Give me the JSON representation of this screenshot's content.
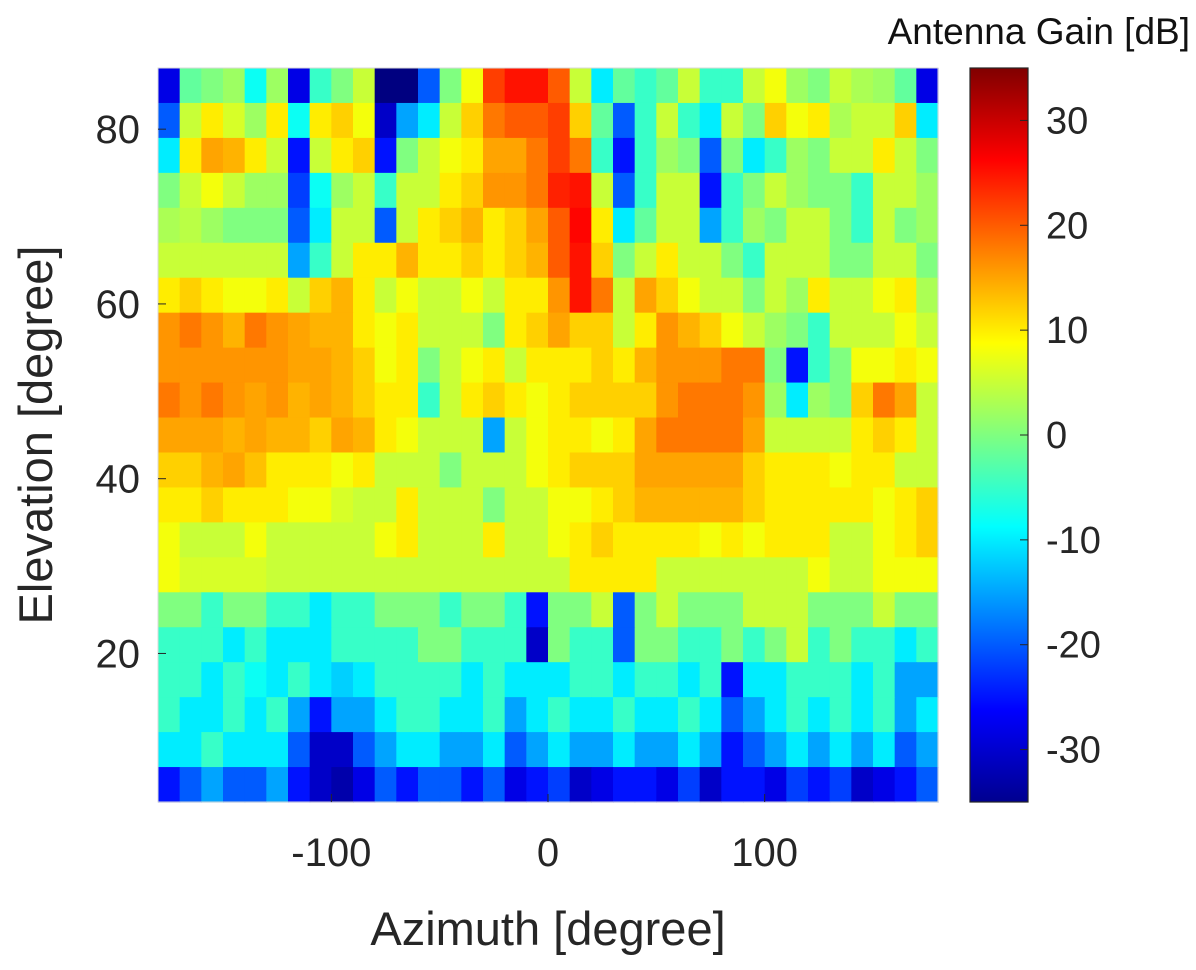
{
  "chart_data": {
    "type": "heatmap",
    "title": "",
    "xlabel": "Azimuth [degree]",
    "ylabel": "Elevation [degree]",
    "xlim": [
      -180,
      180
    ],
    "ylim": [
      3,
      87
    ],
    "xticks": [
      -100,
      0,
      100
    ],
    "yticks": [
      20,
      40,
      60,
      80
    ],
    "colormap": "jet",
    "colorbar": {
      "title": "Antenna Gain [dB]",
      "clim": [
        -35,
        35
      ],
      "ticks": [
        -30,
        -20,
        -10,
        0,
        10,
        20,
        30
      ]
    },
    "azimuth_bins": [
      -175,
      -165,
      -155,
      -145,
      -135,
      -125,
      -115,
      -105,
      -95,
      -85,
      -75,
      -65,
      -55,
      -45,
      -35,
      -25,
      -15,
      -5,
      5,
      15,
      25,
      35,
      45,
      55,
      65,
      75,
      85,
      95,
      105,
      115,
      125,
      135,
      145,
      155,
      165,
      175
    ],
    "elevation_bins": [
      85,
      81,
      77,
      73,
      69,
      65,
      61,
      57,
      53,
      49,
      45,
      41,
      37,
      33,
      29,
      25,
      21,
      17,
      13,
      9,
      5
    ],
    "gain_db": [
      [
        -28,
        -2,
        0,
        2,
        -8,
        2,
        -28,
        -5,
        0,
        5,
        -35,
        -35,
        -20,
        0,
        8,
        22,
        25,
        25,
        20,
        5,
        -10,
        -2,
        -5,
        -2,
        5,
        -5,
        -5,
        5,
        8,
        2,
        0,
        5,
        3,
        2,
        -2,
        -28
      ],
      [
        -20,
        5,
        10,
        6,
        2,
        10,
        -8,
        10,
        12,
        8,
        -30,
        -15,
        -10,
        5,
        12,
        18,
        20,
        20,
        22,
        12,
        -2,
        -20,
        -5,
        5,
        -5,
        -10,
        5,
        0,
        12,
        8,
        10,
        3,
        5,
        5,
        12,
        -10
      ],
      [
        -10,
        10,
        15,
        14,
        10,
        5,
        -25,
        5,
        10,
        12,
        -25,
        0,
        5,
        8,
        10,
        15,
        15,
        18,
        22,
        18,
        -5,
        -25,
        -5,
        2,
        0,
        -20,
        0,
        -10,
        -5,
        2,
        0,
        5,
        5,
        10,
        5,
        0
      ],
      [
        0,
        5,
        8,
        5,
        2,
        2,
        -22,
        -8,
        2,
        5,
        -5,
        5,
        5,
        10,
        12,
        16,
        16,
        18,
        24,
        25,
        5,
        -20,
        -5,
        5,
        5,
        -25,
        -5,
        0,
        5,
        2,
        0,
        0,
        -5,
        5,
        5,
        2
      ],
      [
        3,
        4,
        2,
        0,
        0,
        0,
        -20,
        -10,
        5,
        5,
        -20,
        5,
        10,
        12,
        14,
        10,
        12,
        15,
        20,
        26,
        10,
        -10,
        -2,
        5,
        5,
        -15,
        -5,
        2,
        0,
        5,
        5,
        0,
        -5,
        5,
        0,
        2
      ],
      [
        5,
        5,
        5,
        5,
        5,
        5,
        -15,
        -5,
        5,
        10,
        10,
        14,
        10,
        10,
        12,
        10,
        12,
        14,
        20,
        25,
        12,
        0,
        5,
        10,
        5,
        5,
        0,
        -5,
        5,
        5,
        5,
        0,
        0,
        5,
        5,
        0
      ],
      [
        10,
        12,
        10,
        8,
        8,
        10,
        5,
        12,
        14,
        10,
        5,
        8,
        5,
        5,
        8,
        5,
        10,
        10,
        16,
        25,
        18,
        5,
        15,
        12,
        8,
        5,
        5,
        0,
        5,
        2,
        10,
        5,
        5,
        8,
        10,
        3
      ],
      [
        16,
        18,
        16,
        14,
        18,
        16,
        15,
        14,
        14,
        10,
        8,
        10,
        5,
        5,
        5,
        0,
        10,
        12,
        15,
        12,
        12,
        5,
        10,
        16,
        14,
        12,
        8,
        5,
        2,
        0,
        -5,
        5,
        5,
        5,
        8,
        5
      ],
      [
        16,
        16,
        16,
        16,
        16,
        16,
        15,
        15,
        14,
        12,
        8,
        10,
        0,
        5,
        8,
        10,
        5,
        10,
        10,
        10,
        12,
        10,
        14,
        16,
        16,
        16,
        18,
        18,
        0,
        -25,
        -5,
        0,
        8,
        8,
        10,
        8
      ],
      [
        18,
        16,
        18,
        16,
        15,
        16,
        14,
        15,
        14,
        12,
        10,
        10,
        -5,
        5,
        10,
        12,
        10,
        8,
        10,
        12,
        12,
        12,
        12,
        16,
        18,
        18,
        18,
        16,
        2,
        -10,
        2,
        0,
        12,
        18,
        15,
        5
      ],
      [
        15,
        15,
        15,
        14,
        15,
        14,
        14,
        12,
        15,
        14,
        10,
        8,
        5,
        5,
        5,
        -15,
        5,
        8,
        10,
        10,
        8,
        10,
        15,
        18,
        18,
        18,
        18,
        15,
        5,
        5,
        5,
        5,
        10,
        12,
        10,
        5
      ],
      [
        12,
        12,
        14,
        15,
        13,
        10,
        10,
        10,
        8,
        10,
        5,
        5,
        5,
        0,
        5,
        5,
        5,
        8,
        10,
        12,
        12,
        12,
        15,
        15,
        15,
        15,
        15,
        12,
        10,
        10,
        10,
        8,
        10,
        10,
        5,
        5
      ],
      [
        10,
        10,
        12,
        10,
        10,
        10,
        8,
        8,
        6,
        5,
        5,
        10,
        5,
        5,
        5,
        0,
        5,
        5,
        8,
        8,
        10,
        12,
        14,
        14,
        14,
        14,
        14,
        12,
        10,
        10,
        10,
        10,
        10,
        8,
        10,
        12
      ],
      [
        8,
        5,
        5,
        5,
        8,
        5,
        5,
        5,
        5,
        5,
        8,
        10,
        5,
        5,
        5,
        10,
        5,
        5,
        8,
        10,
        12,
        10,
        10,
        10,
        10,
        8,
        10,
        8,
        10,
        10,
        10,
        5,
        5,
        8,
        10,
        12
      ],
      [
        8,
        6,
        6,
        6,
        6,
        5,
        5,
        5,
        5,
        5,
        5,
        5,
        5,
        5,
        5,
        5,
        5,
        5,
        5,
        10,
        10,
        10,
        10,
        5,
        5,
        5,
        5,
        5,
        5,
        5,
        8,
        5,
        5,
        8,
        8,
        8
      ],
      [
        0,
        0,
        -5,
        0,
        0,
        -5,
        -5,
        -10,
        -5,
        -5,
        0,
        0,
        0,
        -5,
        0,
        0,
        -5,
        -25,
        0,
        0,
        5,
        -20,
        0,
        5,
        0,
        0,
        0,
        5,
        5,
        5,
        0,
        0,
        0,
        5,
        0,
        0
      ],
      [
        -5,
        -5,
        -5,
        -10,
        -5,
        -10,
        -10,
        -10,
        -5,
        -5,
        -5,
        -5,
        0,
        0,
        -5,
        -5,
        -5,
        -30,
        0,
        -5,
        -5,
        -20,
        0,
        0,
        -5,
        -5,
        0,
        -5,
        0,
        5,
        -5,
        0,
        -5,
        -5,
        -10,
        -5
      ],
      [
        -5,
        -5,
        -10,
        -5,
        -8,
        -10,
        -5,
        -10,
        -12,
        -10,
        -5,
        -5,
        -5,
        -5,
        -10,
        -5,
        -10,
        -10,
        -10,
        -5,
        -5,
        -10,
        -5,
        -5,
        -10,
        -5,
        -25,
        -10,
        -10,
        -5,
        -5,
        -5,
        -10,
        -5,
        -15,
        -15
      ],
      [
        -5,
        -10,
        -10,
        -5,
        -10,
        -5,
        -15,
        -25,
        -15,
        -15,
        -10,
        -5,
        -5,
        -10,
        -10,
        -5,
        -15,
        -10,
        -5,
        -10,
        -10,
        -5,
        -10,
        -10,
        -5,
        -10,
        -20,
        -15,
        -10,
        -5,
        -10,
        -5,
        -10,
        -5,
        -15,
        -10
      ],
      [
        -10,
        -10,
        -5,
        -10,
        -10,
        -10,
        -20,
        -30,
        -30,
        -20,
        -15,
        -10,
        -10,
        -15,
        -15,
        -10,
        -20,
        -15,
        -10,
        -15,
        -15,
        -10,
        -15,
        -15,
        -10,
        -15,
        -25,
        -20,
        -15,
        -10,
        -15,
        -10,
        -15,
        -10,
        -20,
        -15
      ],
      [
        -25,
        -20,
        -15,
        -20,
        -20,
        -15,
        -25,
        -30,
        -32,
        -28,
        -20,
        -25,
        -20,
        -20,
        -25,
        -20,
        -28,
        -25,
        -22,
        -30,
        -28,
        -25,
        -25,
        -28,
        -22,
        -30,
        -25,
        -25,
        -28,
        -22,
        -25,
        -22,
        -30,
        -28,
        -25,
        -20
      ]
    ]
  }
}
